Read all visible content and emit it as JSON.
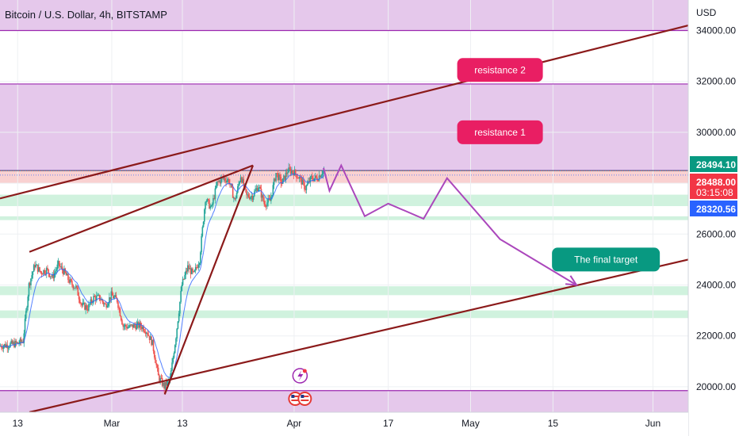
{
  "chart_data": {
    "type": "candlestick",
    "title": "Bitcoin / U.S. Dollar, 4h, BITSTAMP",
    "currency": "USD",
    "ylim": [
      19000,
      35200
    ],
    "y_ticks": [
      {
        "value": 20000,
        "label": "20000.00"
      },
      {
        "value": 22000,
        "label": "22000.00"
      },
      {
        "value": 24000,
        "label": "24000.00"
      },
      {
        "value": 26000,
        "label": "26000.00"
      },
      {
        "value": 28000,
        "label": "28000.00"
      },
      {
        "value": 30000,
        "label": "30000.00"
      },
      {
        "value": 32000,
        "label": "32000.00"
      },
      {
        "value": 34000,
        "label": "34000.00"
      }
    ],
    "xlim": [
      "2023-02-10",
      "2023-06-07"
    ],
    "x_ticks": [
      {
        "date": "2023-02-13",
        "label": "13"
      },
      {
        "date": "2023-03-01",
        "label": "Mar"
      },
      {
        "date": "2023-03-13",
        "label": "13"
      },
      {
        "date": "2023-04-01",
        "label": "Apr"
      },
      {
        "date": "2023-04-17",
        "label": "17"
      },
      {
        "date": "2023-05-01",
        "label": "May"
      },
      {
        "date": "2023-05-15",
        "label": "15"
      },
      {
        "date": "2023-06-01",
        "label": "Jun"
      }
    ],
    "price_path": [
      [
        "2023-02-10",
        21600
      ],
      [
        "2023-02-13",
        21700
      ],
      [
        "2023-02-14",
        21800
      ],
      [
        "2023-02-15",
        24000
      ],
      [
        "2023-02-16",
        24800
      ],
      [
        "2023-02-17",
        24500
      ],
      [
        "2023-02-18",
        24600
      ],
      [
        "2023-02-19",
        24300
      ],
      [
        "2023-02-20",
        24800
      ],
      [
        "2023-02-21",
        24500
      ],
      [
        "2023-02-22",
        24100
      ],
      [
        "2023-02-23",
        23900
      ],
      [
        "2023-02-24",
        23200
      ],
      [
        "2023-02-25",
        23100
      ],
      [
        "2023-02-26",
        23500
      ],
      [
        "2023-02-27",
        23500
      ],
      [
        "2023-02-28",
        23200
      ],
      [
        "2023-03-01",
        23600
      ],
      [
        "2023-03-02",
        23400
      ],
      [
        "2023-03-03",
        22400
      ],
      [
        "2023-03-04",
        22350
      ],
      [
        "2023-03-05",
        22400
      ],
      [
        "2023-03-06",
        22400
      ],
      [
        "2023-03-07",
        22200
      ],
      [
        "2023-03-08",
        21700
      ],
      [
        "2023-03-09",
        20400
      ],
      [
        "2023-03-10",
        20000
      ],
      [
        "2023-03-11",
        20300
      ],
      [
        "2023-03-12",
        22000
      ],
      [
        "2023-03-13",
        24000
      ],
      [
        "2023-03-14",
        24700
      ],
      [
        "2023-03-15",
        24400
      ],
      [
        "2023-03-16",
        25000
      ],
      [
        "2023-03-17",
        27400
      ],
      [
        "2023-03-18",
        27000
      ],
      [
        "2023-03-19",
        28000
      ],
      [
        "2023-03-20",
        28200
      ],
      [
        "2023-03-21",
        28100
      ],
      [
        "2023-03-22",
        27300
      ],
      [
        "2023-03-23",
        28300
      ],
      [
        "2023-03-24",
        27500
      ],
      [
        "2023-03-25",
        27500
      ],
      [
        "2023-03-26",
        27900
      ],
      [
        "2023-03-27",
        27200
      ],
      [
        "2023-03-28",
        27300
      ],
      [
        "2023-03-29",
        28400
      ],
      [
        "2023-03-30",
        28000
      ],
      [
        "2023-03-31",
        28500
      ],
      [
        "2023-04-01",
        28450
      ],
      [
        "2023-04-02",
        28200
      ],
      [
        "2023-04-03",
        27800
      ],
      [
        "2023-04-04",
        28200
      ],
      [
        "2023-04-05",
        28200
      ],
      [
        "2023-04-06",
        28488
      ]
    ],
    "price_lines": [
      {
        "value": 28494.1,
        "label": "28494.10",
        "color": "#089981",
        "style": "solid"
      },
      {
        "value": 28488.0,
        "label": "28488.00",
        "countdown": "03:15:08",
        "color": "#f23645",
        "style": "dotted"
      },
      {
        "value": 28320.56,
        "label": "28320.56",
        "color": "#2962ff",
        "style": "dotted"
      }
    ],
    "zones": [
      {
        "kind": "resistance",
        "from": 34000,
        "to": 35200,
        "color": "#e1bee7"
      },
      {
        "kind": "resistance",
        "from": 28500,
        "to": 31900,
        "color": "#e1bee7"
      },
      {
        "kind": "resistance",
        "from": 28000,
        "to": 28500,
        "color": "#f8c9c9"
      },
      {
        "kind": "support",
        "from": 27100,
        "to": 27550,
        "color": "#c8f0d8"
      },
      {
        "kind": "support",
        "from": 26550,
        "to": 26700,
        "color": "#c8f0d8"
      },
      {
        "kind": "support",
        "from": 23600,
        "to": 23950,
        "color": "#c8f0d8"
      },
      {
        "kind": "support",
        "from": 22700,
        "to": 23000,
        "color": "#c8f0d8"
      },
      {
        "kind": "support",
        "from": 19000,
        "to": 19850,
        "color": "#e1bee7"
      }
    ],
    "horizontal_lines": [
      34000,
      31900,
      28500,
      19850
    ],
    "trendlines": [
      {
        "from": [
          "2023-02-10",
          27400
        ],
        "to": [
          "2023-06-07",
          34200
        ]
      },
      {
        "from": [
          "2023-02-15",
          19000
        ],
        "to": [
          "2023-06-07",
          25000
        ]
      },
      {
        "from": [
          "2023-02-15",
          25300
        ],
        "to": [
          "2023-03-25",
          28700
        ]
      },
      {
        "from": [
          "2023-03-10",
          19700
        ],
        "to": [
          "2023-03-25",
          28700
        ]
      }
    ],
    "projection": [
      [
        "2023-04-06",
        28600
      ],
      [
        "2023-04-07",
        27700
      ],
      [
        "2023-04-09",
        28700
      ],
      [
        "2023-04-13",
        26700
      ],
      [
        "2023-04-17",
        27200
      ],
      [
        "2023-04-23",
        26600
      ],
      [
        "2023-04-27",
        28200
      ],
      [
        "2023-05-06",
        25800
      ],
      [
        "2023-05-19",
        24000
      ]
    ],
    "annotations": [
      {
        "text": "resistance 2",
        "at": [
          "2023-05-06",
          32450
        ],
        "color": "#e91e63"
      },
      {
        "text": "resistance 1",
        "at": [
          "2023-05-06",
          30000
        ],
        "color": "#e91e63"
      },
      {
        "text": "The final target",
        "at": [
          "2023-05-24",
          25000
        ],
        "color": "#089981"
      }
    ],
    "colors": {
      "up": "#26a69a",
      "down": "#ef5350",
      "trendline": "#8b1a1a",
      "projection": "#ab47bc",
      "grid": "#eef0f3"
    }
  }
}
